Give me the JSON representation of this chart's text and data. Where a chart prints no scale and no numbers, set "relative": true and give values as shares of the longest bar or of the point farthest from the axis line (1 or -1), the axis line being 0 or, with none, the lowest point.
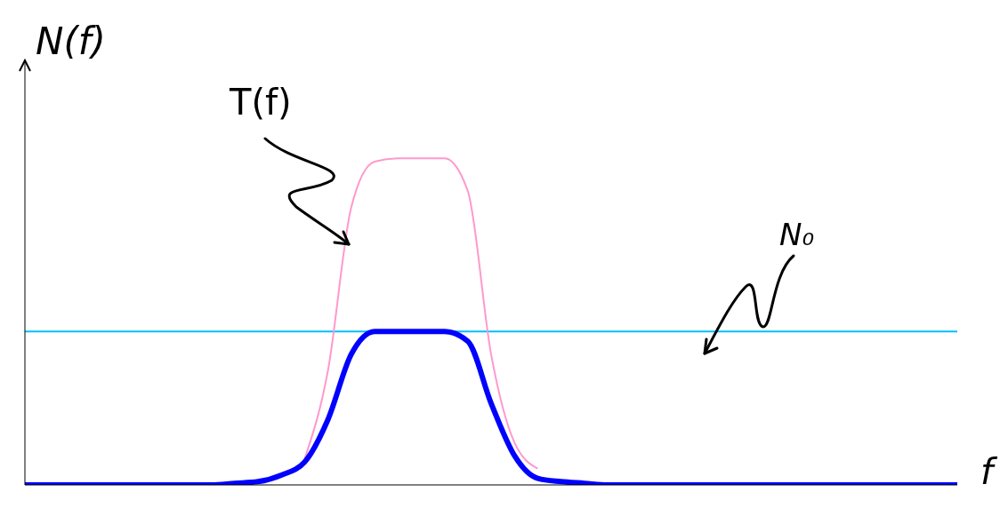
{
  "chart_data": {
    "type": "line",
    "relative": true,
    "xlabel": "f",
    "ylabel": "N(f)",
    "categories": [
      null,
      null,
      null,
      null,
      null,
      null,
      null,
      null,
      null,
      null,
      null,
      null,
      null,
      null,
      null,
      null,
      null,
      null,
      null,
      null,
      null,
      null,
      null,
      null,
      null,
      null,
      null,
      null,
      null,
      null,
      null,
      null,
      null,
      null,
      null,
      null,
      null,
      null,
      null,
      null,
      null
    ],
    "series": [
      {
        "color": "#ff99cc",
        "values": [
          null,
          null,
          null,
          null,
          null,
          null,
          null,
          null,
          null,
          null,
          null,
          null,
          0.08,
          0.35,
          0.85,
          0.99,
          1,
          1,
          1,
          0.9,
          0.4,
          0.13,
          0.05,
          null,
          null,
          null,
          null,
          null,
          null,
          null,
          null,
          null,
          null,
          null,
          null,
          null,
          null,
          null,
          null,
          null,
          null
        ]
      },
      {
        "color": "#0000ff",
        "values": [
          0,
          0,
          0,
          0,
          0,
          0,
          0,
          0,
          0,
          0.005,
          0.01,
          0.03,
          0.07,
          0.2,
          0.4,
          0.47,
          0.47,
          0.47,
          0.47,
          0.44,
          0.25,
          0.09,
          0.02,
          0.01,
          0.005,
          0,
          0,
          0,
          0,
          0,
          0,
          0,
          0,
          0,
          0,
          0,
          0,
          0,
          0,
          0,
          0
        ]
      }
    ],
    "ref_lines": [
      {
        "axis": "y",
        "value": 0.47,
        "color": "#00bfff"
      }
    ],
    "annotations": [
      "T(f)",
      "N₀"
    ],
    "grid": false,
    "marker": "none",
    "line_style": "solid"
  }
}
